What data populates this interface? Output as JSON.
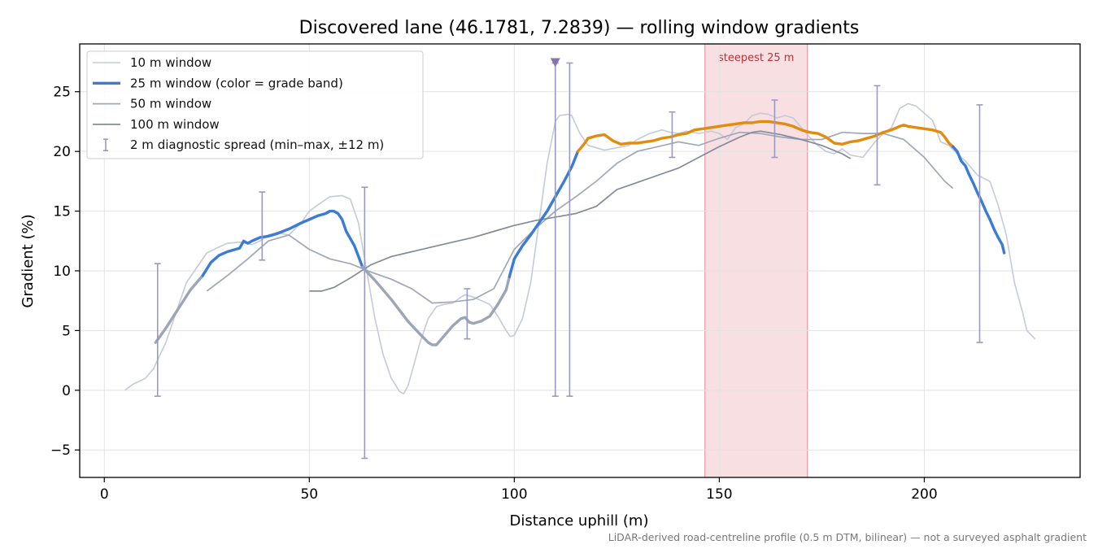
{
  "chart_data": {
    "type": "line",
    "title": "Discovered lane (46.1781, 7.2839) — rolling window gradients",
    "xlabel": "Distance uphill (m)",
    "ylabel": "Gradient (%)",
    "footnote": "LiDAR-derived road-centreline profile (0.5 m DTM, bilinear) — not a surveyed asphalt gradient",
    "xlim": [
      -6,
      238
    ],
    "ylim": [
      -7.3,
      29
    ],
    "xticks": [
      0,
      50,
      100,
      150,
      200
    ],
    "xtick_labels": [
      "0",
      "50",
      "100",
      "150",
      "200"
    ],
    "yticks": [
      -5,
      0,
      5,
      10,
      15,
      20,
      25
    ],
    "ytick_labels": [
      "−5",
      "0",
      "5",
      "10",
      "15",
      "20",
      "25"
    ],
    "grid": true,
    "legend_position": "upper-left",
    "shaded_region": {
      "x0": 146.5,
      "x1": 171.5,
      "label": "steepest 25 m"
    },
    "marker": {
      "x": 110,
      "y": 27.4,
      "shape": "downward-triangle"
    },
    "series": [
      {
        "name": "10 m window",
        "color": "#c4cad6",
        "x": [
          5,
          7,
          10,
          12,
          15,
          18,
          20,
          22,
          25,
          28,
          30,
          33,
          36,
          38,
          40,
          42,
          45,
          48,
          50,
          52,
          55,
          58,
          60,
          62,
          63,
          65,
          66,
          68,
          70,
          72,
          73,
          74,
          75,
          77,
          79,
          81,
          83,
          85,
          87,
          88,
          90,
          92,
          94,
          96,
          98,
          99,
          100,
          102,
          104,
          106,
          108,
          110,
          111,
          113,
          114,
          116,
          118,
          120,
          122,
          125,
          128,
          130,
          133,
          136,
          138,
          140,
          142,
          145,
          148,
          150,
          152,
          154,
          156,
          158,
          160,
          162,
          164,
          166,
          168,
          170,
          172,
          174,
          176,
          178,
          180,
          182,
          185,
          188,
          190,
          192,
          194,
          196,
          198,
          200,
          202,
          204,
          206,
          208,
          210,
          213,
          216,
          218,
          220,
          222,
          224,
          225,
          227
        ],
        "y": [
          0,
          0.5,
          1,
          1.8,
          4,
          7,
          9,
          10,
          11.5,
          12,
          12.3,
          12.4,
          12.2,
          12.5,
          13,
          13.2,
          13,
          14,
          15,
          15.5,
          16.2,
          16.3,
          16,
          14,
          12,
          8,
          6,
          3,
          1,
          -0.1,
          -0.3,
          0.3,
          1.5,
          4,
          6,
          7,
          7.2,
          7.3,
          7.8,
          8,
          7.8,
          7.5,
          7.2,
          6.2,
          5,
          4.5,
          4.6,
          6,
          9,
          14,
          19,
          22.5,
          23,
          23.1,
          23,
          21.5,
          20.5,
          20.3,
          20.1,
          20.3,
          20.5,
          21,
          21.5,
          21.8,
          21.6,
          21.5,
          21.7,
          21.5,
          21.7,
          21.5,
          21,
          22,
          22.3,
          23,
          23.2,
          23.1,
          22.8,
          23,
          22.8,
          22,
          21.2,
          20.5,
          20,
          19.8,
          20.2,
          19.7,
          19.5,
          20.8,
          21.5,
          22,
          23.6,
          24,
          23.8,
          23.2,
          22.6,
          20.8,
          20.5,
          19.8,
          19.2,
          18,
          17.5,
          15.5,
          13,
          9,
          6.5,
          5,
          4.3
        ]
      },
      {
        "name": "25 m window (color = grade band)",
        "color": "#3a7bd5",
        "band_colors": {
          "steep": "#3a7bd5",
          "moderate": "#9aa6b8",
          "very-steep": "#e38b0c"
        },
        "segments": [
          {
            "band": "moderate",
            "x": [
              12.5,
              15,
              18,
              21,
              24
            ],
            "y": [
              4,
              5.2,
              6.8,
              8.4,
              9.6
            ]
          },
          {
            "band": "steep",
            "x": [
              24,
              26,
              28,
              30,
              33,
              34,
              35,
              36,
              38,
              40,
              42,
              45,
              48,
              50,
              52,
              54,
              55,
              56,
              57,
              58,
              59,
              60,
              61,
              62,
              63
            ],
            "y": [
              9.6,
              10.7,
              11.3,
              11.6,
              11.9,
              12.5,
              12.3,
              12.5,
              12.8,
              12.9,
              13.1,
              13.5,
              14,
              14.3,
              14.6,
              14.8,
              15,
              15,
              14.8,
              14.3,
              13.3,
              12.7,
              12.1,
              11.2,
              10.3
            ]
          },
          {
            "band": "moderate",
            "x": [
              63,
              66,
              70,
              74,
              77,
              79,
              80,
              81,
              83,
              85,
              87,
              88,
              89,
              90,
              92,
              94,
              96,
              98,
              98.8
            ],
            "y": [
              10.3,
              9.2,
              7.6,
              5.8,
              4.7,
              4,
              3.8,
              3.8,
              4.6,
              5.4,
              6,
              6.1,
              5.7,
              5.6,
              5.8,
              6.2,
              7.2,
              8.4,
              9.5
            ]
          },
          {
            "band": "steep",
            "x": [
              98.8,
              100,
              102,
              104,
              106,
              108,
              110,
              112,
              114,
              115.5
            ],
            "y": [
              9.5,
              11,
              12.1,
              13,
              14,
              15,
              16.2,
              17.4,
              18.7,
              20
            ]
          },
          {
            "band": "very-steep",
            "x": [
              115.5,
              117,
              118,
              120,
              122,
              124,
              126,
              128,
              130,
              132,
              134,
              136,
              138,
              140,
              142,
              144,
              146,
              148,
              150,
              152,
              154,
              156,
              158,
              160,
              162,
              164,
              166,
              168,
              170,
              172,
              174,
              176,
              178,
              180,
              182,
              184,
              186,
              188,
              190,
              192,
              194,
              195,
              196,
              198,
              200,
              202,
              204,
              205,
              206,
              207
            ],
            "y": [
              20,
              20.6,
              21.1,
              21.3,
              21.4,
              20.9,
              20.6,
              20.7,
              20.7,
              20.8,
              20.9,
              21.1,
              21.2,
              21.4,
              21.5,
              21.8,
              21.9,
              22,
              22.1,
              22.2,
              22.3,
              22.4,
              22.4,
              22.5,
              22.5,
              22.4,
              22.3,
              22.1,
              21.8,
              21.6,
              21.5,
              21.2,
              20.7,
              20.6,
              20.8,
              20.9,
              21.1,
              21.3,
              21.6,
              21.8,
              22.1,
              22.2,
              22.1,
              22,
              21.9,
              21.8,
              21.6,
              21.2,
              20.7,
              20.4
            ]
          },
          {
            "band": "steep",
            "x": [
              207,
              208,
              209,
              210,
              211,
              212,
              213,
              214,
              215,
              216,
              217,
              218,
              219,
              219.5
            ],
            "y": [
              20.4,
              20,
              19.2,
              18.8,
              18,
              17.3,
              16.5,
              15.8,
              15,
              14.3,
              13.5,
              12.8,
              12.2,
              11.5
            ]
          }
        ]
      },
      {
        "name": "50 m window",
        "color": "#9fa7b8",
        "x": [
          25,
          30,
          35,
          40,
          45,
          50,
          55,
          60,
          65,
          70,
          75,
          80,
          85,
          90,
          95,
          100,
          105,
          110,
          115,
          120,
          125,
          130,
          135,
          140,
          145,
          150,
          155,
          160,
          165,
          170,
          175,
          180,
          185,
          190,
          195,
          200,
          205,
          207
        ],
        "y": [
          8.3,
          9.6,
          11,
          12.5,
          13,
          11.8,
          11,
          10.6,
          9.9,
          9.3,
          8.5,
          7.3,
          7.4,
          7.6,
          8.5,
          11.8,
          13.5,
          15,
          16.2,
          17.5,
          19,
          20,
          20.4,
          20.8,
          20.5,
          21.1,
          21.6,
          21.5,
          21.2,
          21,
          21,
          21.6,
          21.5,
          21.5,
          21,
          19.5,
          17.5,
          16.9
        ]
      },
      {
        "name": "100 m window",
        "color": "#838a9a",
        "x": [
          50,
          53,
          56,
          60,
          65,
          70,
          75,
          80,
          85,
          90,
          95,
          100,
          105,
          110,
          115,
          120,
          125,
          130,
          135,
          140,
          145,
          150,
          155,
          158,
          160,
          165,
          170,
          175,
          180,
          182
        ],
        "y": [
          8.3,
          8.3,
          8.6,
          9.4,
          10.5,
          11.2,
          11.6,
          12.0,
          12.4,
          12.8,
          13.3,
          13.8,
          14.2,
          14.5,
          14.8,
          15.4,
          16.8,
          17.4,
          18,
          18.6,
          19.5,
          20.4,
          21.2,
          21.6,
          21.7,
          21.4,
          21.0,
          20.5,
          19.8,
          19.4
        ]
      }
    ],
    "error_bars": {
      "name": "2 m diagnostic spread (min–max, ±12 m)",
      "color": "#9a99c2",
      "bars": [
        {
          "x": 13,
          "low": -0.5,
          "high": 10.6
        },
        {
          "x": 38.5,
          "low": 10.9,
          "high": 16.6
        },
        {
          "x": 63.5,
          "low": -5.7,
          "high": 17
        },
        {
          "x": 88.5,
          "low": 4.3,
          "high": 8.5
        },
        {
          "x": 110,
          "low": -0.5,
          "high": 27.4
        },
        {
          "x": 113.5,
          "low": -0.5,
          "high": 27.4
        },
        {
          "x": 138.5,
          "low": 19.5,
          "high": 23.3
        },
        {
          "x": 163.5,
          "low": 19.5,
          "high": 24.3
        },
        {
          "x": 188.5,
          "low": 17.2,
          "high": 25.5
        },
        {
          "x": 213.5,
          "low": 4,
          "high": 23.9
        }
      ]
    }
  }
}
